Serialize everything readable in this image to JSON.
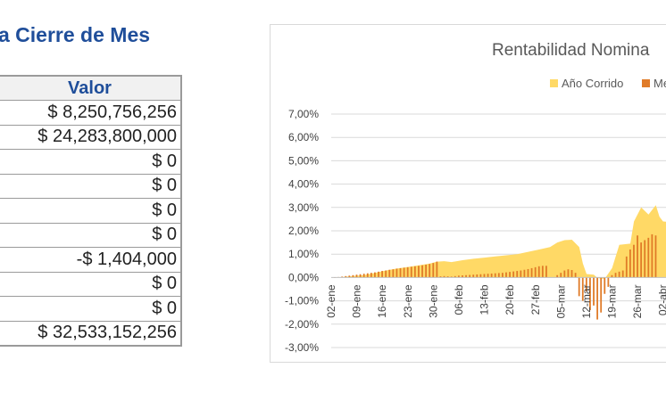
{
  "heading": "a Cierre de Mes",
  "table": {
    "header": "Valor",
    "rows": [
      "$ 8,250,756,256",
      "$ 24,283,800,000",
      "$ 0",
      "$ 0",
      "$ 0",
      "$ 0",
      "-$ 1,404,000",
      "$ 0",
      "$ 0",
      "$ 32,533,152,256"
    ]
  },
  "colors": {
    "heading": "#1f4e9a",
    "area": "#ffd966",
    "bar": "#e07b28",
    "grid": "#d9d9d9"
  },
  "chart_data": {
    "type": "area",
    "title": "Rentabilidad Nomina",
    "legend_position": "top",
    "ylim": [
      -3,
      7
    ],
    "y_ticks": [
      "7,00%",
      "6,00%",
      "5,00%",
      "4,00%",
      "3,00%",
      "2,00%",
      "1,00%",
      "0,00%",
      "-1,00%",
      "-2,00%",
      "-3,00%"
    ],
    "x_ticks": [
      "02-ene",
      "09-ene",
      "16-ene",
      "23-ene",
      "30-ene",
      "06-feb",
      "13-feb",
      "20-feb",
      "27-feb",
      "05-mar",
      "12-mar",
      "19-mar",
      "26-mar",
      "02-abr"
    ],
    "x_tick_days": [
      0,
      7,
      14,
      21,
      28,
      35,
      42,
      49,
      56,
      63,
      70,
      77,
      84,
      91
    ],
    "grid": true,
    "series": [
      {
        "name": "Año Corrido",
        "type": "area",
        "points": [
          [
            0,
            0
          ],
          [
            3,
            0.02
          ],
          [
            6,
            0.06
          ],
          [
            9,
            0.1
          ],
          [
            12,
            0.2
          ],
          [
            15,
            0.3
          ],
          [
            18,
            0.38
          ],
          [
            21,
            0.45
          ],
          [
            24,
            0.52
          ],
          [
            27,
            0.6
          ],
          [
            29,
            0.68
          ],
          [
            31,
            0.7
          ],
          [
            33,
            0.66
          ],
          [
            36,
            0.74
          ],
          [
            39,
            0.8
          ],
          [
            42,
            0.85
          ],
          [
            45,
            0.9
          ],
          [
            48,
            0.95
          ],
          [
            51,
            1.0
          ],
          [
            54,
            1.1
          ],
          [
            57,
            1.2
          ],
          [
            60,
            1.3
          ],
          [
            62,
            1.5
          ],
          [
            64,
            1.6
          ],
          [
            66,
            1.62
          ],
          [
            68,
            1.3
          ],
          [
            69,
            0.6
          ],
          [
            70,
            0.15
          ],
          [
            72,
            0.12
          ],
          [
            73,
            -0.02
          ],
          [
            74,
            -0.05
          ],
          [
            75,
            -0.05
          ],
          [
            77,
            0.4
          ],
          [
            79,
            1.4
          ],
          [
            82,
            1.45
          ],
          [
            83,
            2.4
          ],
          [
            85,
            3.0
          ],
          [
            87,
            2.7
          ],
          [
            89,
            3.1
          ],
          [
            90,
            2.6
          ],
          [
            91,
            2.4
          ],
          [
            95,
            2.35
          ]
        ]
      },
      {
        "name": "Mes",
        "type": "bar",
        "points": [
          [
            1,
            0.01
          ],
          [
            2,
            0.02
          ],
          [
            3,
            0.04
          ],
          [
            4,
            0.06
          ],
          [
            5,
            0.08
          ],
          [
            6,
            0.1
          ],
          [
            7,
            0.12
          ],
          [
            8,
            0.14
          ],
          [
            9,
            0.16
          ],
          [
            10,
            0.18
          ],
          [
            11,
            0.2
          ],
          [
            12,
            0.22
          ],
          [
            13,
            0.25
          ],
          [
            14,
            0.28
          ],
          [
            15,
            0.3
          ],
          [
            16,
            0.33
          ],
          [
            17,
            0.35
          ],
          [
            18,
            0.38
          ],
          [
            19,
            0.4
          ],
          [
            20,
            0.42
          ],
          [
            21,
            0.44
          ],
          [
            22,
            0.46
          ],
          [
            23,
            0.48
          ],
          [
            24,
            0.5
          ],
          [
            25,
            0.52
          ],
          [
            26,
            0.55
          ],
          [
            27,
            0.58
          ],
          [
            28,
            0.62
          ],
          [
            29,
            0.68
          ],
          [
            30,
            0.05
          ],
          [
            31,
            0.06
          ],
          [
            32,
            0.05
          ],
          [
            33,
            0.04
          ],
          [
            34,
            0.06
          ],
          [
            35,
            0.08
          ],
          [
            36,
            0.09
          ],
          [
            37,
            0.1
          ],
          [
            38,
            0.11
          ],
          [
            39,
            0.12
          ],
          [
            40,
            0.13
          ],
          [
            41,
            0.14
          ],
          [
            42,
            0.15
          ],
          [
            43,
            0.16
          ],
          [
            44,
            0.17
          ],
          [
            45,
            0.18
          ],
          [
            46,
            0.19
          ],
          [
            47,
            0.2
          ],
          [
            48,
            0.22
          ],
          [
            49,
            0.24
          ],
          [
            50,
            0.26
          ],
          [
            51,
            0.28
          ],
          [
            52,
            0.3
          ],
          [
            53,
            0.33
          ],
          [
            54,
            0.36
          ],
          [
            55,
            0.4
          ],
          [
            56,
            0.44
          ],
          [
            57,
            0.48
          ],
          [
            58,
            0.5
          ],
          [
            59,
            0.5
          ],
          [
            62,
            0.1
          ],
          [
            63,
            0.2
          ],
          [
            64,
            0.3
          ],
          [
            65,
            0.35
          ],
          [
            66,
            0.32
          ],
          [
            67,
            0.2
          ],
          [
            68,
            -0.8
          ],
          [
            69,
            -1.0
          ],
          [
            70,
            -0.6
          ],
          [
            71,
            -1.4
          ],
          [
            72,
            -1.2
          ],
          [
            73,
            -1.8
          ],
          [
            74,
            -1.5
          ],
          [
            75,
            -0.7
          ],
          [
            76,
            -0.4
          ],
          [
            77,
            0.1
          ],
          [
            78,
            0.2
          ],
          [
            79,
            0.25
          ],
          [
            80,
            0.3
          ],
          [
            81,
            0.9
          ],
          [
            82,
            1.2
          ],
          [
            83,
            1.4
          ],
          [
            84,
            1.8
          ],
          [
            85,
            1.5
          ],
          [
            86,
            1.6
          ],
          [
            87,
            1.7
          ],
          [
            88,
            1.85
          ],
          [
            89,
            1.8
          ]
        ]
      }
    ]
  }
}
